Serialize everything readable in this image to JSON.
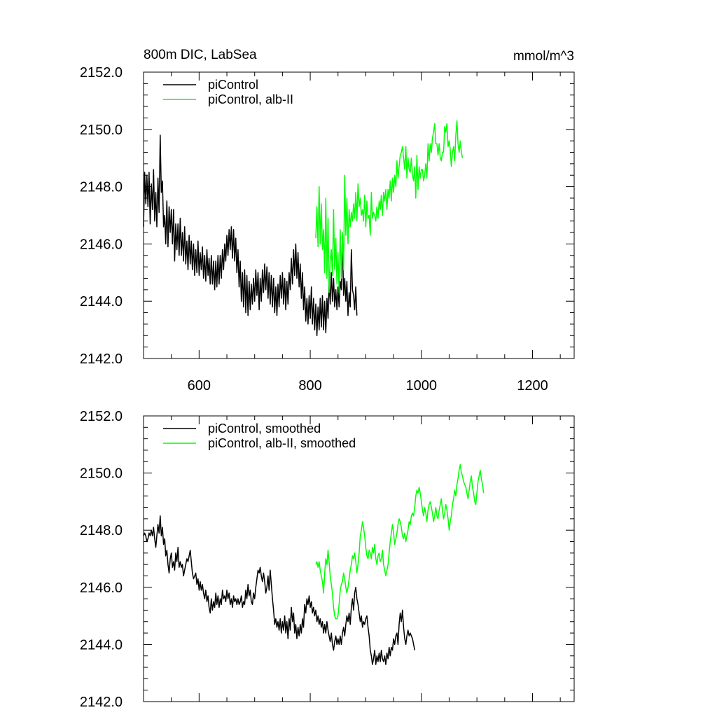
{
  "chart_data": [
    {
      "type": "line",
      "title": "800m DIC, LabSea",
      "units": "mmol/m^3",
      "xlim": [
        500,
        1275
      ],
      "ylim": [
        2142.0,
        2152.0
      ],
      "xticks": [
        600,
        800,
        1000,
        1200
      ],
      "yticks": [
        "2142.0",
        "2144.0",
        "2146.0",
        "2148.0",
        "2150.0",
        "2152.0"
      ],
      "show_x_tick_labels": true,
      "legend_position": "top-left",
      "series": [
        {
          "name": "piControl",
          "color": "#000000",
          "x_start": 500,
          "x_step": 2,
          "values": [
            2146.6,
            2148.5,
            2147.4,
            2148.4,
            2147.3,
            2148.5,
            2146.7,
            2148.1,
            2147.2,
            2148.6,
            2146.8,
            2147.8,
            2146.6,
            2148.3,
            2147.1,
            2149.8,
            2147.8,
            2148.2,
            2146.6,
            2147.0,
            2146.0,
            2147.5,
            2145.9,
            2147.3,
            2146.4,
            2147.2,
            2146.0,
            2147.2,
            2145.4,
            2146.7,
            2145.8,
            2146.7,
            2145.6,
            2146.9,
            2145.6,
            2146.4,
            2145.4,
            2146.6,
            2145.3,
            2146.1,
            2145.1,
            2146.3,
            2145.3,
            2146.1,
            2145.1,
            2146.0,
            2144.9,
            2145.8,
            2145.0,
            2146.1,
            2144.9,
            2145.7,
            2145.1,
            2145.9,
            2144.8,
            2145.6,
            2144.7,
            2145.8,
            2144.9,
            2145.5,
            2144.6,
            2145.6,
            2144.6,
            2145.4,
            2144.4,
            2145.4,
            2144.5,
            2145.6,
            2144.6,
            2145.6,
            2144.8,
            2145.8,
            2145.1,
            2146.0,
            2145.4,
            2146.3,
            2145.6,
            2146.5,
            2145.8,
            2146.6,
            2145.5,
            2146.5,
            2145.4,
            2146.2,
            2145.0,
            2145.8,
            2144.5,
            2145.4,
            2144.0,
            2145.0,
            2143.8,
            2145.1,
            2143.6,
            2144.9,
            2143.5,
            2144.7,
            2143.7,
            2144.6,
            2143.9,
            2144.8,
            2144.0,
            2145.1,
            2144.2,
            2145.0,
            2143.7,
            2144.8,
            2144.0,
            2145.1,
            2144.3,
            2145.3,
            2144.4,
            2145.2,
            2144.1,
            2145.0,
            2143.9,
            2144.9,
            2143.8,
            2144.8,
            2143.6,
            2144.5,
            2143.5,
            2144.6,
            2143.8,
            2144.9,
            2144.1,
            2145.0,
            2143.9,
            2144.8,
            2143.7,
            2144.7,
            2143.9,
            2145.0,
            2144.4,
            2145.5,
            2144.6,
            2145.8,
            2144.9,
            2146.0,
            2144.8,
            2145.7,
            2144.5,
            2145.3,
            2144.1,
            2145.0,
            2143.7,
            2144.5,
            2143.3,
            2144.1,
            2143.2,
            2144.2,
            2143.4,
            2144.5,
            2143.2,
            2144.1,
            2143.0,
            2143.9,
            2142.8,
            2143.8,
            2143.0,
            2144.1,
            2143.1,
            2144.2,
            2143.0,
            2144.0,
            2142.9,
            2144.1,
            2143.4,
            2144.7,
            2143.9,
            2145.0,
            2144.0,
            2144.8,
            2143.8,
            2144.4,
            2143.7,
            2144.5,
            2143.8,
            2144.7,
            2144.4,
            2146.2,
            2144.2,
            2144.8,
            2144.0,
            2144.7,
            2143.5,
            2144.3,
            2143.8,
            2145.8,
            2144.4,
            2144.2,
            2143.7,
            2144.5,
            2143.5
          ]
        },
        {
          "name": "piControl, alb-II",
          "color": "#00ff00",
          "x_start": 810,
          "x_step": 2,
          "values": [
            2146.2,
            2147.3,
            2145.9,
            2148.0,
            2146.0,
            2147.4,
            2145.8,
            2146.5,
            2145.0,
            2147.6,
            2144.8,
            2146.9,
            2144.3,
            2145.4,
            2145.8,
            2144.9,
            2147.2,
            2145.1,
            2146.2,
            2144.6,
            2145.7,
            2144.3,
            2146.5,
            2144.8,
            2146.4,
            2145.1,
            2148.4,
            2146.3,
            2147.6,
            2146.0,
            2147.2,
            2146.6,
            2147.1,
            2146.8,
            2147.4,
            2146.9,
            2147.8,
            2146.8,
            2148.1,
            2147.3,
            2147.6,
            2147.0,
            2147.2,
            2146.8,
            2147.7,
            2146.6,
            2147.5,
            2146.9,
            2147.0,
            2146.3,
            2147.8,
            2146.9,
            2147.1,
            2147.0,
            2146.8,
            2147.3,
            2146.9,
            2147.5,
            2147.2,
            2147.7,
            2147.0,
            2147.8,
            2147.5,
            2147.9,
            2147.2,
            2147.9,
            2147.6,
            2148.2,
            2147.5,
            2148.3,
            2147.8,
            2148.4,
            2148.0,
            2148.9,
            2148.3,
            2148.7,
            2149.1,
            2149.2,
            2149.4,
            2149.0,
            2148.6,
            2149.4,
            2148.3,
            2149.0,
            2148.6,
            2148.5,
            2149.0,
            2148.4,
            2148.2,
            2148.7,
            2147.6,
            2149.1,
            2147.9,
            2148.7,
            2148.3,
            2148.6,
            2148.6,
            2148.2,
            2148.4,
            2148.8,
            2148.3,
            2149.5,
            2148.9,
            2149.5,
            2149.2,
            2149.7,
            2149.9,
            2150.2,
            2149.5,
            2149.5,
            2149.1,
            2149.5,
            2149.0,
            2148.9,
            2149.2,
            2149.2,
            2150.1,
            2149.9,
            2150.2,
            2149.4,
            2149.6,
            2149.3,
            2148.7,
            2149.2,
            2149.4,
            2148.9,
            2149.8,
            2150.3,
            2149.5,
            2149.2,
            2149.6,
            2149.2,
            2149.0
          ]
        }
      ]
    },
    {
      "type": "line",
      "title": "",
      "units": "",
      "xlim": [
        500,
        1275
      ],
      "ylim": [
        2142.0,
        2152.0
      ],
      "xticks": [
        600,
        800,
        1000,
        1200
      ],
      "yticks": [
        "2142.0",
        "2144.0",
        "2146.0",
        "2148.0",
        "2150.0",
        "2152.0"
      ],
      "show_x_tick_labels": false,
      "legend_position": "top-left",
      "series": [
        {
          "name": "piControl, smoothed",
          "color": "#000000",
          "x_start": 500,
          "x_step": 2,
          "values": [
            2147.8,
            2147.9,
            2147.8,
            2147.6,
            2147.7,
            2147.9,
            2147.8,
            2148.0,
            2147.8,
            2148.1,
            2147.7,
            2147.4,
            2147.8,
            2148.2,
            2147.9,
            2148.5,
            2147.8,
            2148.1,
            2147.5,
            2147.7,
            2147.1,
            2147.3,
            2146.8,
            2146.5,
            2147.0,
            2147.2,
            2146.7,
            2146.9,
            2146.6,
            2147.2,
            2146.9,
            2147.4,
            2146.7,
            2146.9,
            2146.7,
            2146.8,
            2146.4,
            2146.6,
            2146.8,
            2147.0,
            2146.9,
            2147.1,
            2147.3,
            2146.9,
            2146.5,
            2146.3,
            2146.4,
            2146.5,
            2146.1,
            2146.3,
            2145.9,
            2146.2,
            2145.9,
            2146.1,
            2145.8,
            2145.6,
            2145.9,
            2145.5,
            2145.7,
            2145.3,
            2145.1,
            2145.6,
            2145.2,
            2145.5,
            2145.3,
            2145.8,
            2145.4,
            2145.7,
            2145.3,
            2145.6,
            2145.4,
            2145.9,
            2145.6,
            2145.7,
            2145.5,
            2145.9,
            2145.6,
            2145.8,
            2145.4,
            2145.6,
            2145.3,
            2145.7,
            2145.5,
            2145.6,
            2145.4,
            2145.6,
            2145.4,
            2145.5,
            2145.7,
            2145.3,
            2145.5,
            2145.4,
            2145.9,
            2145.6,
            2146.1,
            2145.7,
            2145.9,
            2145.5,
            2145.4,
            2145.8,
            2145.6,
            2146.0,
            2146.3,
            2146.6,
            2146.5,
            2146.7,
            2146.4,
            2146.2,
            2146.5,
            2146.2,
            2145.8,
            2146.0,
            2146.4,
            2145.9,
            2146.6,
            2146.1,
            2145.6,
            2145.2,
            2144.7,
            2144.9,
            2144.6,
            2144.8,
            2144.5,
            2144.9,
            2144.4,
            2144.8,
            2144.5,
            2145.0,
            2144.4,
            2144.8,
            2144.2,
            2144.9,
            2144.5,
            2145.3,
            2144.8,
            2145.1,
            2144.4,
            2144.7,
            2144.2,
            2144.6,
            2144.3,
            2144.7,
            2144.4,
            2144.9,
            2144.6,
            2145.4,
            2145.1,
            2145.6,
            2145.4,
            2145.7,
            2145.3,
            2145.5,
            2145.1,
            2145.3,
            2145.0,
            2145.2,
            2144.8,
            2145.0,
            2144.7,
            2144.9,
            2144.6,
            2144.8,
            2144.4,
            2144.7,
            2144.4,
            2144.8,
            2144.5,
            2144.3,
            2144.1,
            2144.4,
            2144.0,
            2143.8,
            2144.1,
            2144.3,
            2144.0,
            2144.2,
            2144.0,
            2144.3,
            2144.0,
            2144.4,
            2144.6,
            2144.3,
            2144.7,
            2145.0,
            2144.8,
            2145.1,
            2144.7,
            2145.3,
            2145.6,
            2145.2,
            2145.8,
            2146.0,
            2145.6,
            2145.4,
            2145.1,
            2144.8,
            2145.0,
            2144.6,
            2144.8,
            2144.7,
            2144.9,
            2145.0,
            2144.6,
            2144.3,
            2143.8,
            2143.6,
            2143.3,
            2143.5,
            2143.8,
            2143.3,
            2143.6,
            2143.4,
            2143.7,
            2143.4,
            2143.8,
            2143.5,
            2143.4,
            2143.6,
            2143.3,
            2143.7,
            2143.5,
            2143.9,
            2143.6,
            2143.9,
            2143.8,
            2144.2,
            2144.0,
            2144.3,
            2144.4,
            2144.0,
            2144.7,
            2145.1,
            2144.8,
            2145.2,
            2144.6,
            2144.2,
            2144.0,
            2144.3,
            2144.5,
            2144.3,
            2144.4,
            2144.3,
            2144.2,
            2144.0,
            2143.8
          ]
        },
        {
          "name": "piControl, alb-II, smoothed",
          "color": "#00ff00",
          "x_start": 810,
          "x_step": 2,
          "values": [
            2146.8,
            2146.9,
            2146.7,
            2146.9,
            2146.6,
            2146.4,
            2146.2,
            2145.8,
            2146.5,
            2147.0,
            2146.8,
            2147.3,
            2146.9,
            2146.4,
            2146.1,
            2145.8,
            2145.3,
            2145.0,
            2144.9,
            2144.9,
            2145.0,
            2145.4,
            2145.9,
            2146.1,
            2146.2,
            2146.5,
            2146.3,
            2146.0,
            2145.8,
            2146.0,
            2146.3,
            2146.6,
            2146.8,
            2147.1,
            2147.0,
            2147.2,
            2146.9,
            2146.5,
            2146.8,
            2147.2,
            2147.8,
            2148.0,
            2148.3,
            2148.1,
            2147.8,
            2147.4,
            2147.1,
            2147.0,
            2147.3,
            2147.2,
            2147.0,
            2147.4,
            2147.2,
            2147.5,
            2147.0,
            2146.8,
            2147.1,
            2147.2,
            2146.9,
            2147.0,
            2147.3,
            2146.8,
            2146.6,
            2146.4,
            2146.6,
            2146.8,
            2147.2,
            2147.6,
            2147.9,
            2148.2,
            2147.9,
            2147.5,
            2147.7,
            2147.9,
            2148.2,
            2148.4,
            2148.3,
            2148.1,
            2147.8,
            2147.7,
            2147.9,
            2147.6,
            2147.8,
            2148.0,
            2148.3,
            2148.2,
            2148.5,
            2148.6,
            2148.5,
            2148.8,
            2149.2,
            2149.4,
            2149.3,
            2149.5,
            2149.3,
            2149.0,
            2148.7,
            2148.5,
            2148.8,
            2148.6,
            2148.3,
            2148.7,
            2148.9,
            2149.0,
            2148.8,
            2148.6,
            2148.3,
            2148.5,
            2148.8,
            2148.5,
            2148.4,
            2148.7,
            2148.9,
            2149.1,
            2148.7,
            2148.4,
            2148.6,
            2148.9,
            2148.7,
            2148.4,
            2148.0,
            2148.3,
            2148.5,
            2148.9,
            2149.1,
            2149.4,
            2149.2,
            2149.6,
            2149.8,
            2150.1,
            2150.3,
            2150.0,
            2149.9,
            2149.7,
            2149.6,
            2149.5,
            2149.3,
            2149.1,
            2149.4,
            2149.7,
            2149.9,
            2149.5,
            2149.3,
            2149.0,
            2148.9,
            2149.3,
            2149.7,
            2149.9,
            2150.1,
            2149.8,
            2149.6,
            2149.3
          ]
        }
      ]
    }
  ]
}
